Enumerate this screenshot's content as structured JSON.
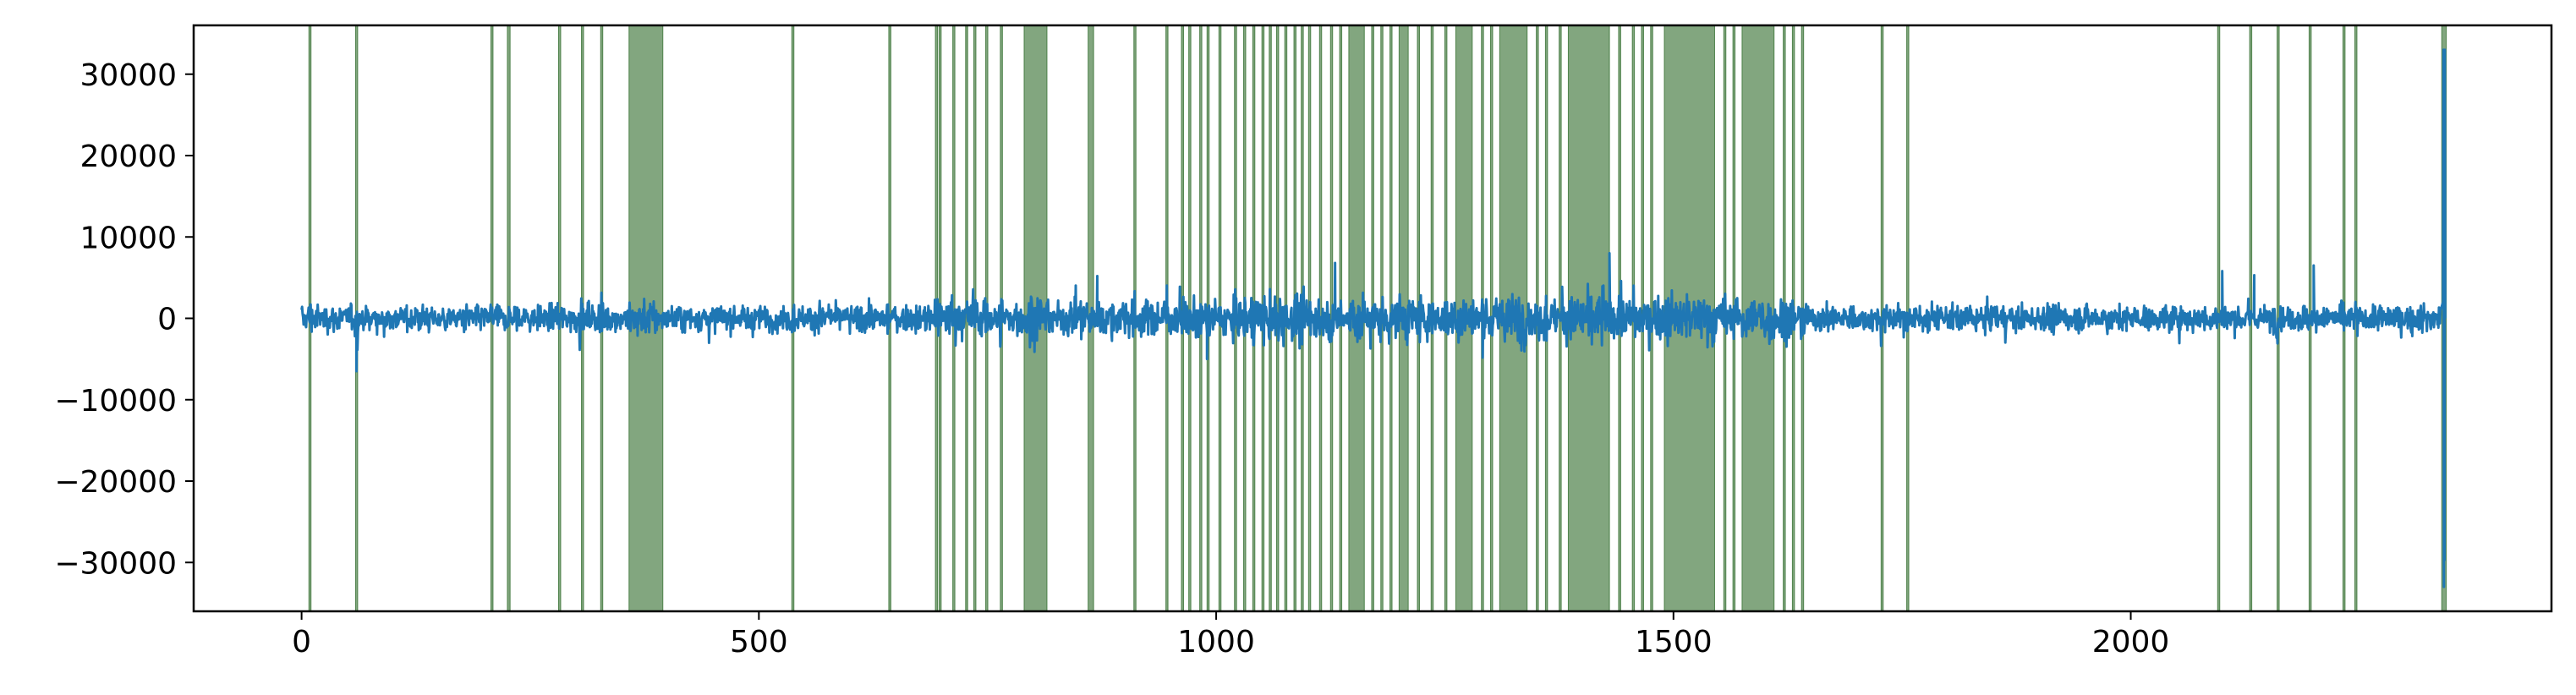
{
  "chart_data": {
    "type": "line",
    "title": "",
    "xlabel": "",
    "ylabel": "",
    "xlim": [
      -118,
      2460
    ],
    "ylim": [
      -36000,
      36000
    ],
    "xticks": [
      0,
      500,
      1000,
      1500,
      2000
    ],
    "yticks": [
      -30000,
      -20000,
      -10000,
      0,
      10000,
      20000,
      30000
    ],
    "grid": false,
    "legend": "none",
    "colors": {
      "signal": "#1f77b4",
      "highlight": "#2e6b2a"
    },
    "signal": {
      "x_range": [
        0,
        2345
      ],
      "baseline_amplitude": 2000,
      "min_spike": -6500,
      "max_spike": 33000,
      "max_spike_x": 2343
    },
    "highlight_spans": [
      [
        8,
        10
      ],
      [
        59,
        60
      ],
      [
        207,
        208
      ],
      [
        225,
        228
      ],
      [
        281,
        282
      ],
      [
        306,
        307
      ],
      [
        327,
        328
      ],
      [
        358,
        395
      ],
      [
        536,
        537
      ],
      [
        642,
        643
      ],
      [
        693,
        694
      ],
      [
        697,
        698
      ],
      [
        712,
        713
      ],
      [
        726,
        728
      ],
      [
        735,
        737
      ],
      [
        748,
        749
      ],
      [
        764,
        765
      ],
      [
        790,
        815
      ],
      [
        860,
        866
      ],
      [
        910,
        911
      ],
      [
        945,
        946
      ],
      [
        962,
        963
      ],
      [
        970,
        972
      ],
      [
        982,
        983
      ],
      [
        990,
        992
      ],
      [
        1003,
        1004
      ],
      [
        1020,
        1021
      ],
      [
        1030,
        1032
      ],
      [
        1040,
        1042
      ],
      [
        1050,
        1051
      ],
      [
        1058,
        1059
      ],
      [
        1066,
        1068
      ],
      [
        1075,
        1076
      ],
      [
        1085,
        1086
      ],
      [
        1093,
        1094
      ],
      [
        1101,
        1103
      ],
      [
        1113,
        1114
      ],
      [
        1125,
        1126
      ],
      [
        1135,
        1136
      ],
      [
        1145,
        1162
      ],
      [
        1170,
        1172
      ],
      [
        1180,
        1182
      ],
      [
        1190,
        1192
      ],
      [
        1200,
        1210
      ],
      [
        1220,
        1222
      ],
      [
        1235,
        1237
      ],
      [
        1250,
        1252
      ],
      [
        1262,
        1280
      ],
      [
        1290,
        1292
      ],
      [
        1300,
        1302
      ],
      [
        1310,
        1340
      ],
      [
        1350,
        1352
      ],
      [
        1360,
        1362
      ],
      [
        1375,
        1377
      ],
      [
        1385,
        1430
      ],
      [
        1440,
        1442
      ],
      [
        1455,
        1457
      ],
      [
        1465,
        1467
      ],
      [
        1475,
        1477
      ],
      [
        1490,
        1545
      ],
      [
        1555,
        1557
      ],
      [
        1565,
        1567
      ],
      [
        1575,
        1610
      ],
      [
        1620,
        1622
      ],
      [
        1630,
        1632
      ],
      [
        1640,
        1641
      ],
      [
        1727,
        1728
      ],
      [
        1755,
        1756
      ],
      [
        2095,
        2096
      ],
      [
        2130,
        2131
      ],
      [
        2160,
        2161
      ],
      [
        2195,
        2196
      ],
      [
        2232,
        2233
      ],
      [
        2245,
        2246
      ],
      [
        2340,
        2345
      ]
    ],
    "spikes": [
      [
        60,
        -6500
      ],
      [
        2100,
        5800
      ],
      [
        2135,
        5300
      ],
      [
        2200,
        6500
      ],
      [
        1430,
        8000
      ],
      [
        1130,
        6800
      ],
      [
        870,
        5200
      ],
      [
        990,
        -5000
      ]
    ]
  }
}
